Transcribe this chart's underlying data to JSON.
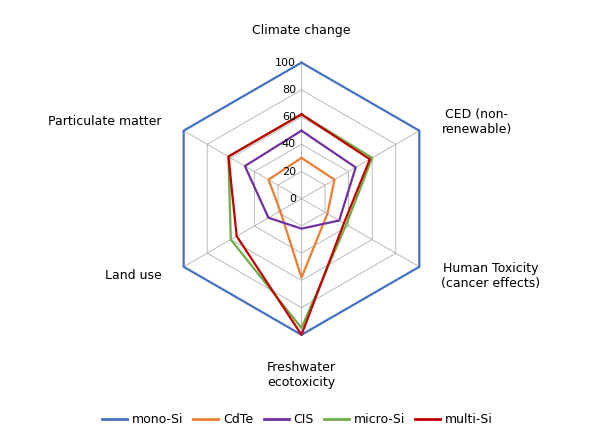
{
  "categories": [
    "Climate change",
    "CED (non-\nrenewable)",
    "Human Toxicity\n(cancer effects)",
    "Freshwater\necotoxicity",
    "Land use",
    "Particulate matter"
  ],
  "series": [
    {
      "name": "mono-Si",
      "color": "#4472C4",
      "values": [
        100,
        100,
        100,
        100,
        100,
        100
      ]
    },
    {
      "name": "CdTe",
      "color": "#ED7D31",
      "values": [
        30,
        28,
        22,
        58,
        18,
        28
      ]
    },
    {
      "name": "CIS",
      "color": "#7030A0",
      "values": [
        50,
        46,
        32,
        22,
        28,
        48
      ]
    },
    {
      "name": "micro-Si",
      "color": "#70AD47",
      "values": [
        62,
        60,
        38,
        95,
        60,
        62
      ]
    },
    {
      "name": "multi-Si",
      "color": "#C00000",
      "values": [
        62,
        58,
        36,
        100,
        55,
        62
      ]
    }
  ],
  "radial_ticks": [
    0,
    20,
    40,
    60,
    80,
    100
  ],
  "ylim": [
    0,
    100
  ],
  "background_color": "#ffffff",
  "grid_color": "#b0b0b0",
  "grid_linewidth": 0.6,
  "series_linewidth": 1.6,
  "legend_fontsize": 9,
  "label_fontsize": 9,
  "tick_fontsize": 8
}
